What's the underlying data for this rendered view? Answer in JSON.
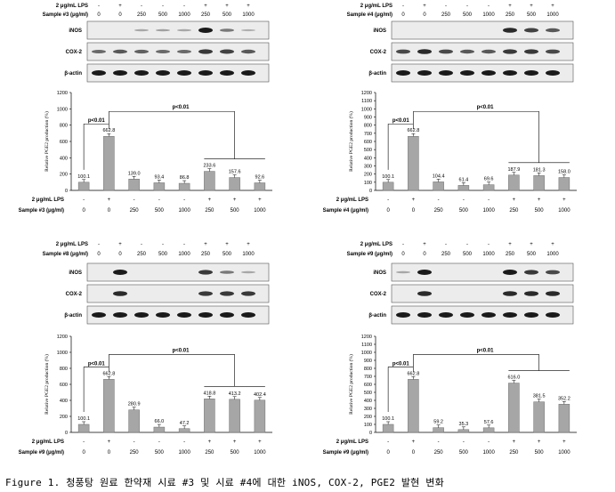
{
  "chart_data": [
    {
      "type": "bar",
      "sample_label": "Sample #3 (μg/ml)",
      "lps_label": "2 μg/mL LPS",
      "lps": [
        "-",
        "+",
        "-",
        "-",
        "-",
        "+",
        "+",
        "+"
      ],
      "doses": [
        "0",
        "0",
        "250",
        "500",
        "1000",
        "250",
        "500",
        "1000"
      ],
      "values": [
        100.1,
        662.8,
        139.0,
        93.4,
        86.8,
        233.6,
        157.6,
        92.6
      ],
      "value_labels": [
        "100.1",
        "662.8",
        "139.0",
        "93.4",
        "86.8",
        "233.6",
        "157.6",
        "92.6"
      ],
      "ylabel": "Relative PGE2 production (%)",
      "ylim": [
        0,
        1200
      ],
      "yticks": [
        "0",
        "200",
        "400",
        "600",
        "800",
        "1000",
        "1200"
      ],
      "significance": [
        "p<0.01",
        "p<0.01"
      ],
      "blots": [
        "iNOS",
        "COX-2",
        "β-actin"
      ],
      "blot_presence": {
        "iNOS": [
          0,
          0,
          0.1,
          0.15,
          0.1,
          1.0,
          0.4,
          0.05
        ],
        "COX-2": [
          0.5,
          0.6,
          0.55,
          0.5,
          0.5,
          0.8,
          0.75,
          0.6
        ],
        "β-actin": [
          1,
          1,
          1,
          1,
          1,
          1,
          1,
          1
        ]
      }
    },
    {
      "type": "bar",
      "sample_label": "Sample #4 (μg/ml)",
      "lps_label": "2 μg/mL LPS",
      "lps": [
        "-",
        "+",
        "-",
        "-",
        "-",
        "+",
        "+",
        "+"
      ],
      "doses": [
        "0",
        "0",
        "250",
        "500",
        "1000",
        "250",
        "500",
        "1000"
      ],
      "values": [
        100.1,
        662.8,
        104.4,
        61.4,
        69.6,
        187.9,
        181.3,
        158.0
      ],
      "value_labels": [
        "100.1",
        "662.8",
        "104.4",
        "61.4",
        "69.6",
        "187.9",
        "181.3",
        "158.0"
      ],
      "ylabel": "Relative PGE2 production (%)",
      "ylim": [
        0,
        1200
      ],
      "yticks": [
        "0",
        "100",
        "200",
        "300",
        "400",
        "500",
        "600",
        "700",
        "800",
        "900",
        "1000",
        "1100",
        "1200"
      ],
      "significance": [
        "p<0.01",
        "p<0.01"
      ],
      "blots": [
        "iNOS",
        "COX-2",
        "β-actin"
      ],
      "blot_presence": {
        "iNOS": [
          0,
          0,
          0,
          0,
          0,
          0.9,
          0.75,
          0.6
        ],
        "COX-2": [
          0.7,
          0.9,
          0.7,
          0.6,
          0.6,
          0.8,
          0.8,
          0.7
        ],
        "β-actin": [
          1,
          1,
          1,
          1,
          1,
          1,
          1,
          1
        ]
      }
    },
    {
      "type": "bar",
      "sample_label": "Sample #8 (μg/ml)",
      "lps_label": "2 μg/mL LPS",
      "lps": [
        "-",
        "+",
        "-",
        "-",
        "-",
        "+",
        "+",
        "+"
      ],
      "doses": [
        "0",
        "0",
        "250",
        "500",
        "1000",
        "250",
        "500",
        "1000"
      ],
      "bottom_sample_label": "Sample #9 (μg/ml)",
      "values": [
        100.1,
        662.8,
        280.9,
        66.0,
        47.2,
        418.8,
        413.2,
        402.4
      ],
      "value_labels": [
        "100.1",
        "662.8",
        "280.9",
        "66.0",
        "47.2",
        "418.8",
        "413.2",
        "402.4"
      ],
      "ylabel": "Relative PGE2 production (%)",
      "ylim": [
        0,
        1200
      ],
      "yticks": [
        "0",
        "200",
        "400",
        "600",
        "800",
        "1000",
        "1200"
      ],
      "significance": [
        "p<0.01",
        "p<0.01"
      ],
      "blots": [
        "iNOS",
        "COX-2",
        "β-actin"
      ],
      "blot_presence": {
        "iNOS": [
          0,
          1.0,
          0,
          0,
          0,
          0.8,
          0.4,
          0.1
        ],
        "COX-2": [
          0,
          0.9,
          0,
          0,
          0,
          0.8,
          0.8,
          0.8
        ],
        "β-actin": [
          1,
          1,
          1,
          1,
          1,
          1,
          1,
          1
        ]
      }
    },
    {
      "type": "bar",
      "sample_label": "Sample #9 (μg/ml)",
      "lps_label": "2 μg/mL LPS",
      "lps": [
        "-",
        "+",
        "-",
        "-",
        "-",
        "+",
        "+",
        "+"
      ],
      "doses": [
        "0",
        "0",
        "250",
        "500",
        "1000",
        "250",
        "500",
        "1000"
      ],
      "values": [
        100.1,
        662.8,
        59.2,
        35.3,
        57.6,
        616.0,
        381.5,
        352.2
      ],
      "value_labels": [
        "100.1",
        "662.8",
        "59.2",
        "35.3",
        "57.6",
        "616.0",
        "381.5",
        "352.2"
      ],
      "ylabel": "Relative PGE2 production (%)",
      "ylim": [
        0,
        1200
      ],
      "yticks": [
        "0",
        "100",
        "200",
        "300",
        "400",
        "500",
        "600",
        "700",
        "800",
        "900",
        "1000",
        "1100",
        "1200"
      ],
      "significance": [
        "p<0.01",
        "p<0.01"
      ],
      "blots": [
        "iNOS",
        "COX-2",
        "β-actin"
      ],
      "blot_presence": {
        "iNOS": [
          0.1,
          1.0,
          0,
          0,
          0,
          1.0,
          0.8,
          0.7
        ],
        "COX-2": [
          0,
          0.9,
          0,
          0,
          0,
          0.9,
          0.9,
          0.9
        ],
        "β-actin": [
          1,
          1,
          1,
          1,
          1,
          1,
          1,
          1
        ]
      }
    }
  ],
  "caption": "Figure 1. 청풍탕 원료 한약재 시료 #3 및 시료 #4에 대한 iNOS, COX-2, PGE2 발현 변화",
  "colors": {
    "bar_fill": "#a6a6a6",
    "bar_stroke": "#6e6e6e",
    "band": "#1a1a1a",
    "blot_bg": "#ececec"
  }
}
